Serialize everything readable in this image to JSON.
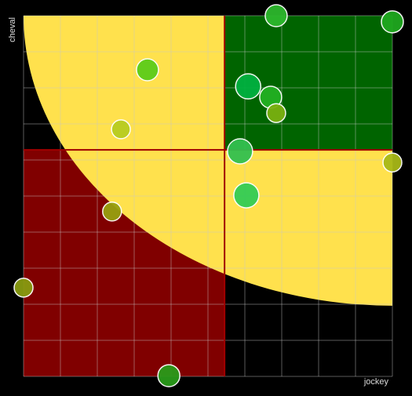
{
  "chart_data": {
    "type": "scatter",
    "x_label": "jockey",
    "y_label": "cheval",
    "xlim": [
      0,
      10
    ],
    "ylim": [
      0,
      10
    ],
    "xticks": [
      0,
      1,
      2,
      3,
      4,
      5,
      6,
      7,
      8,
      9,
      10
    ],
    "yticks": [
      0,
      1,
      2,
      3,
      4,
      5,
      6,
      7,
      8,
      9,
      10
    ],
    "grid": true,
    "quadrant_x": 5.45,
    "quadrant_y": 6.28,
    "curve_radius_x": 10,
    "curve_radius_y": 8.04,
    "quadrant_colors": {
      "top_right": "#006400",
      "bottom_left": "#800000",
      "curve": "#ffe14d",
      "divider": "#a00000"
    },
    "x": [
      6.85,
      10,
      3.36,
      6.09,
      6.7,
      6.85,
      2.64,
      5.87,
      10,
      6.04,
      2.4,
      0,
      3.94
    ],
    "y": [
      10,
      9.83,
      8.5,
      8.04,
      7.74,
      7.3,
      6.85,
      6.24,
      5.93,
      5.02,
      4.57,
      2.46,
      0.02
    ],
    "sizes": [
      14,
      14,
      14,
      16,
      14,
      12,
      12,
      16,
      12,
      16,
      12,
      12,
      14
    ],
    "colors": [
      "#2db82d",
      "#1fa81f",
      "#5ccc1a",
      "#00b040",
      "#22b022",
      "#7ab010",
      "#b8cc20",
      "#33c050",
      "#a8b818",
      "#33cc55",
      "#98a010",
      "#889a10",
      "#2a9a1a"
    ]
  }
}
